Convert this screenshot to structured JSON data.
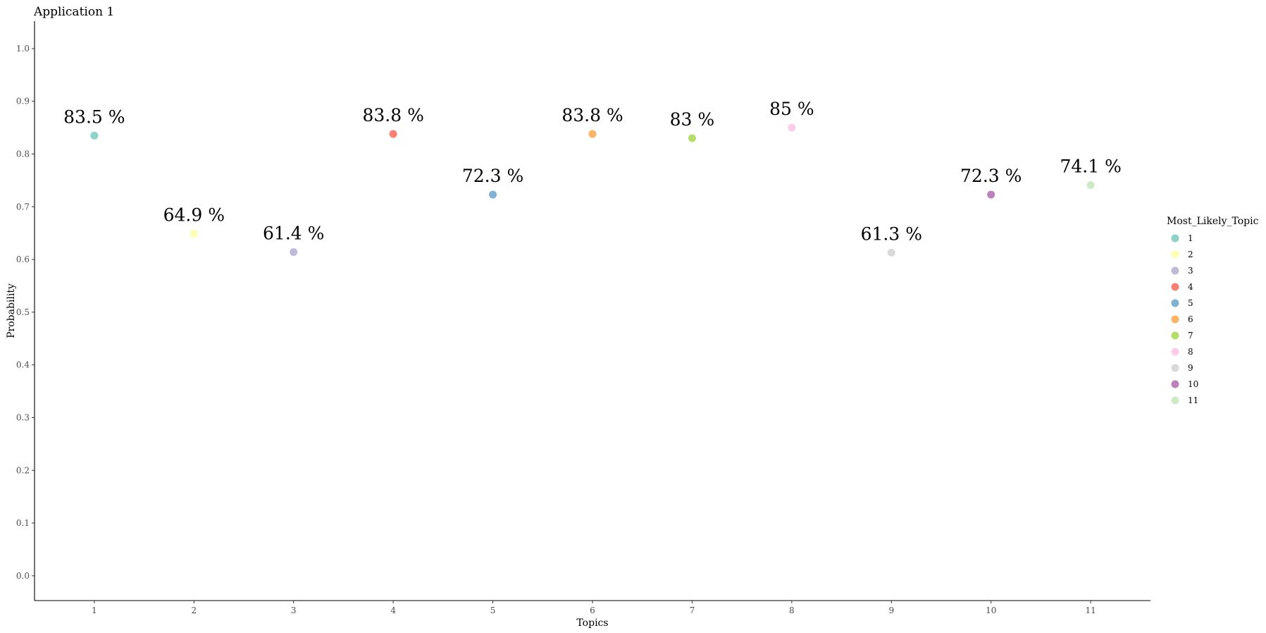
{
  "chart_data": {
    "type": "scatter",
    "title": "Application 1",
    "xlabel": "Topics",
    "ylabel": "Probability",
    "x": [
      1,
      2,
      3,
      4,
      5,
      6,
      7,
      8,
      9,
      10,
      11
    ],
    "x_ticks": [
      "1",
      "2",
      "3",
      "4",
      "5",
      "6",
      "7",
      "8",
      "9",
      "10",
      "11"
    ],
    "y": [
      0.835,
      0.649,
      0.614,
      0.838,
      0.723,
      0.838,
      0.83,
      0.85,
      0.613,
      0.723,
      0.741
    ],
    "data_labels": [
      "83.5 %",
      "64.9 %",
      "61.4 %",
      "83.8 %",
      "72.3 %",
      "83.8 %",
      "83 %",
      "85 %",
      "61.3 %",
      "72.3 %",
      "74.1 %"
    ],
    "y_ticks": [
      "0.0",
      "0.1",
      "0.2",
      "0.3",
      "0.4",
      "0.5",
      "0.6",
      "0.7",
      "0.8",
      "0.9",
      "1.0"
    ],
    "ylim": [
      -0.047,
      1.052
    ],
    "xlim": [
      0.4,
      11.6
    ],
    "grid": false,
    "legend": {
      "title": "Most_Likely_Topic",
      "position": "right",
      "entries": [
        "1",
        "2",
        "3",
        "4",
        "5",
        "6",
        "7",
        "8",
        "9",
        "10",
        "11"
      ]
    },
    "colors": [
      "#8dd3c7",
      "#ffffb3",
      "#bebada",
      "#fb8072",
      "#80b1d3",
      "#fdb462",
      "#b3de69",
      "#fccde5",
      "#d9d9d9",
      "#bc80bd",
      "#ccebc5"
    ]
  }
}
